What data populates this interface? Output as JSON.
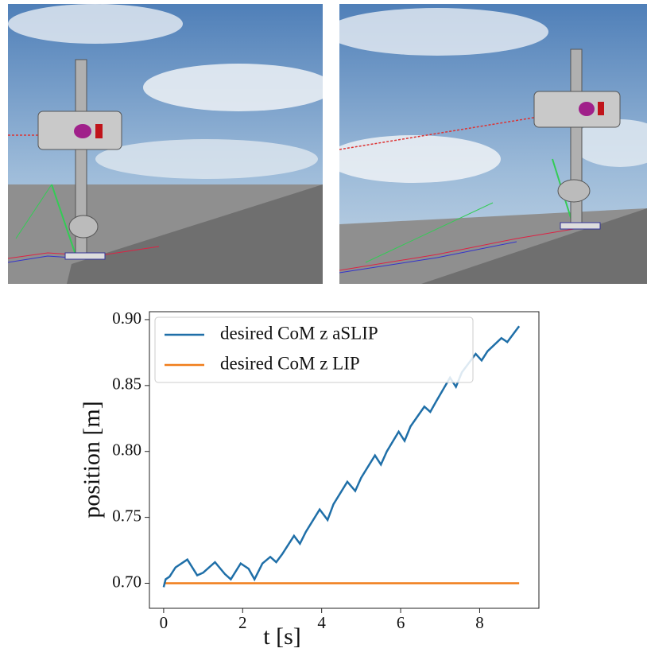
{
  "chart_data": {
    "type": "line",
    "xlabel": "t [s]",
    "ylabel": "position [m]",
    "x": [
      0,
      0.05,
      0.15,
      0.3,
      0.6,
      0.85,
      1.0,
      1.3,
      1.55,
      1.7,
      1.95,
      2.15,
      2.3,
      2.5,
      2.7,
      2.85,
      3.0,
      3.3,
      3.45,
      3.6,
      3.95,
      4.15,
      4.3,
      4.65,
      4.85,
      5.0,
      5.35,
      5.5,
      5.65,
      5.95,
      6.1,
      6.25,
      6.6,
      6.75,
      6.9,
      7.25,
      7.4,
      7.55,
      7.9,
      8.05,
      8.2,
      8.55,
      8.7,
      8.95,
      9.0
    ],
    "series": [
      {
        "name": "desired CoM z aSLIP",
        "color": "#1f6fa8",
        "values": [
          0.697,
          0.703,
          0.705,
          0.712,
          0.718,
          0.706,
          0.708,
          0.716,
          0.707,
          0.703,
          0.715,
          0.711,
          0.703,
          0.715,
          0.72,
          0.716,
          0.722,
          0.736,
          0.73,
          0.739,
          0.756,
          0.748,
          0.76,
          0.777,
          0.77,
          0.78,
          0.797,
          0.79,
          0.8,
          0.815,
          0.808,
          0.819,
          0.834,
          0.83,
          0.838,
          0.856,
          0.849,
          0.86,
          0.874,
          0.869,
          0.876,
          0.886,
          0.883,
          0.893,
          0.895
        ]
      },
      {
        "name": "desired CoM z LIP",
        "color": "#f07d1a",
        "values": [
          0.7,
          0.7,
          0.7,
          0.7,
          0.7,
          0.7,
          0.7,
          0.7,
          0.7,
          0.7,
          0.7,
          0.7,
          0.7,
          0.7,
          0.7,
          0.7,
          0.7,
          0.7,
          0.7,
          0.7,
          0.7,
          0.7,
          0.7,
          0.7,
          0.7,
          0.7,
          0.7,
          0.7,
          0.7,
          0.7,
          0.7,
          0.7,
          0.7,
          0.7,
          0.7,
          0.7,
          0.7,
          0.7,
          0.7,
          0.7,
          0.7,
          0.7,
          0.7,
          0.7,
          0.7
        ]
      }
    ],
    "xlim": [
      -0.36,
      9.5
    ],
    "xticks": [
      0,
      2,
      4,
      6,
      8
    ],
    "ylim": [
      0.681,
      0.906
    ],
    "yticks": [
      {
        "value": 0.7,
        "label": "0.70"
      },
      0.75,
      {
        "value": 0.8,
        "label": "0.80"
      },
      0.85,
      {
        "value": 0.9,
        "label": "0.90"
      }
    ],
    "legend": "upper left",
    "grid": false
  }
}
